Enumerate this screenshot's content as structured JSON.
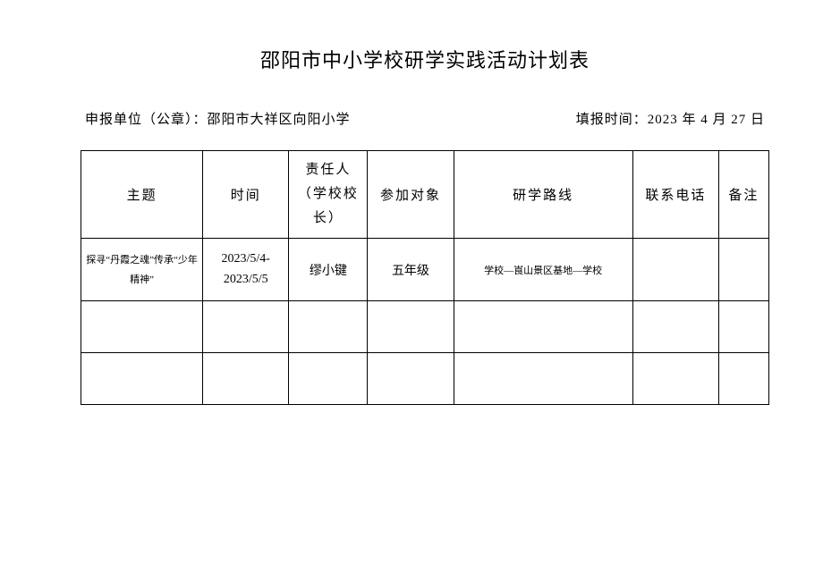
{
  "title": "邵阳市中小学校研学实践活动计划表",
  "info": {
    "left_label": "申报单位（公章）：",
    "left_value": "邵阳市大祥区向阳小学",
    "right_label": "填报时间：",
    "right_value": "2023 年 4 月 27 日"
  },
  "table": {
    "headers": {
      "topic": "主题",
      "time": "时间",
      "person": "责任人（学校校长）",
      "target": "参加对象",
      "route": "研学路线",
      "phone": "联系电话",
      "note": "备注"
    },
    "rows": [
      {
        "topic": "探寻“丹霞之魂”传承“少年精神”",
        "time": "2023/5/4-2023/5/5",
        "person": "缪小键",
        "target": "五年级",
        "route": "学校—崀山景区基地—学校",
        "phone": "",
        "note": ""
      },
      {
        "topic": "",
        "time": "",
        "person": "",
        "target": "",
        "route": "",
        "phone": "",
        "note": ""
      },
      {
        "topic": "",
        "time": "",
        "person": "",
        "target": "",
        "route": "",
        "phone": "",
        "note": ""
      }
    ]
  },
  "styling": {
    "background_color": "#ffffff",
    "border_color": "#000000",
    "text_color": "#000000",
    "title_fontsize": 22,
    "header_fontsize": 15,
    "cell_fontsize": 14,
    "small_fontsize": 11,
    "font_family": "SimSun"
  }
}
